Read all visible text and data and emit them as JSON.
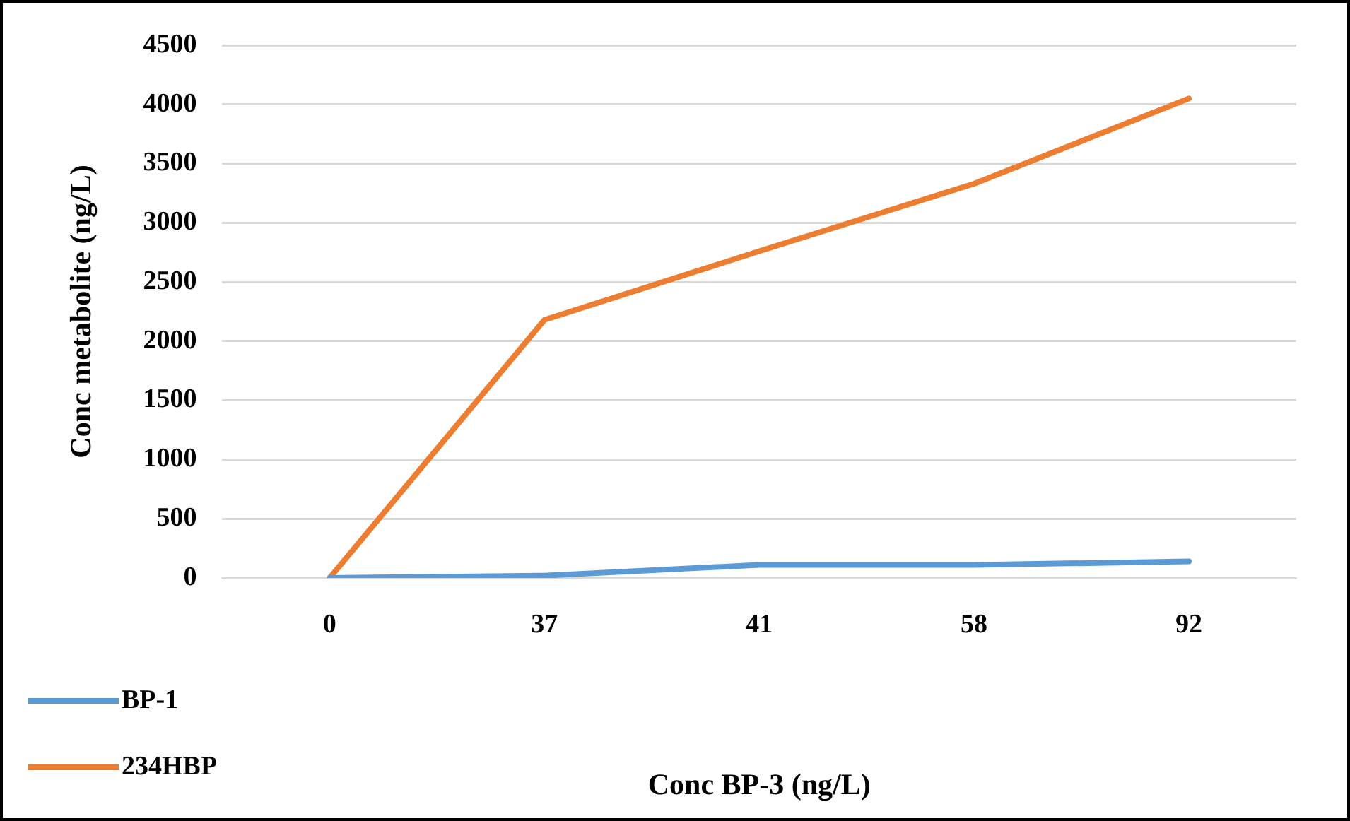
{
  "chart_data": {
    "type": "line",
    "xlabel": "Conc BP-3 (ng/L)",
    "ylabel": "Conc metabolite (ng/L)",
    "categories": [
      "0",
      "37",
      "41",
      "58",
      "92"
    ],
    "series": [
      {
        "name": "BP-1",
        "color": "#5b9bd5",
        "values": [
          0,
          20,
          110,
          110,
          140
        ]
      },
      {
        "name": "234HBP",
        "color": "#ed7d31",
        "values": [
          0,
          2180,
          2760,
          3330,
          4050
        ]
      }
    ],
    "ylim": [
      0,
      4500
    ],
    "yticks": [
      0,
      500,
      1000,
      1500,
      2000,
      2500,
      3000,
      3500,
      4000,
      4500
    ],
    "grid": "y",
    "legend": "bottom left",
    "marker": "none",
    "line_style": "solid"
  }
}
